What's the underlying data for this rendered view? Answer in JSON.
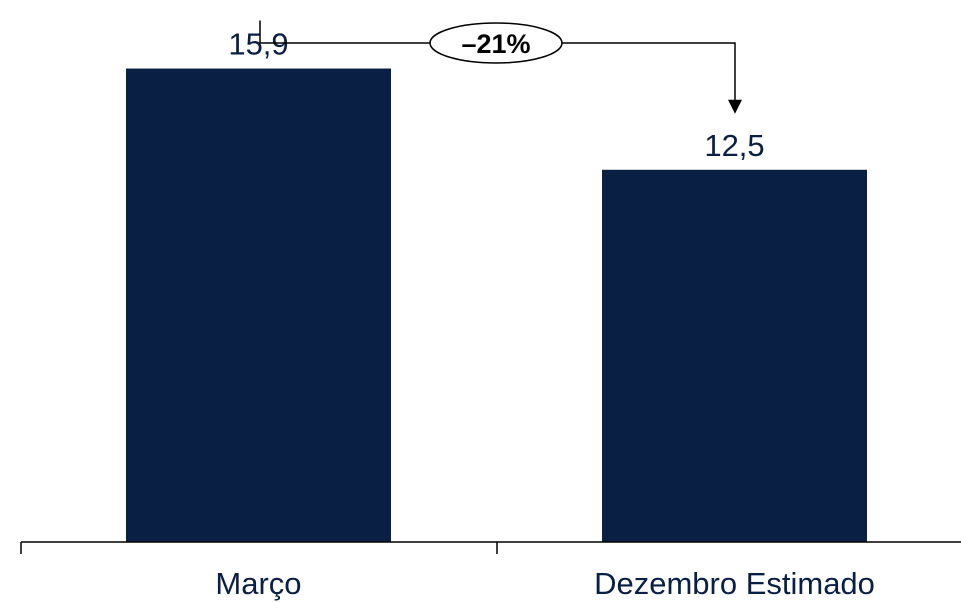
{
  "chart_data": {
    "type": "bar",
    "categories": [
      "Março",
      "Dezembro Estimado"
    ],
    "values": [
      15.9,
      12.5
    ],
    "value_labels": [
      "15,9",
      "12,5"
    ],
    "title": "",
    "xlabel": "",
    "ylabel": "",
    "ylim": [
      0,
      18
    ],
    "grid": false,
    "y_axis_visible": false,
    "bar_color": "#0a1f44",
    "label_color": "#0a1f44",
    "annotation": {
      "type": "change-arrow",
      "from": "Março",
      "to": "Dezembro Estimado",
      "text": "–21%"
    }
  }
}
